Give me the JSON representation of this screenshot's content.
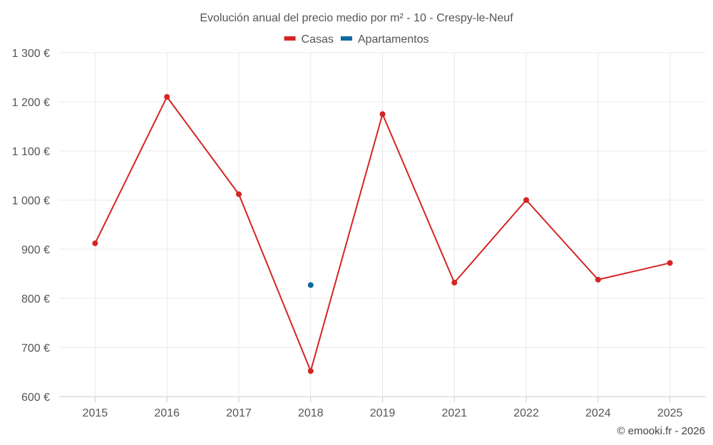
{
  "chart_data": {
    "type": "line",
    "title": "Evolución anual del precio medio por m² - 10 - Crespy-le-Neuf",
    "categories": [
      "2015",
      "2016",
      "2017",
      "2018",
      "2019",
      "2021",
      "2022",
      "2024",
      "2025"
    ],
    "series": [
      {
        "name": "Casas",
        "color": "#d42424",
        "values": [
          912,
          1210,
          1012,
          652,
          1175,
          832,
          1000,
          838,
          872
        ]
      },
      {
        "name": "Apartamentos",
        "color": "#0b6aa0",
        "values": [
          null,
          null,
          null,
          827,
          null,
          null,
          null,
          null,
          null
        ]
      }
    ],
    "ylim": [
      600,
      1300
    ],
    "yticks": [
      600,
      700,
      800,
      900,
      1000,
      1100,
      1200,
      1300
    ],
    "ytick_labels": [
      "600 €",
      "700 €",
      "800 €",
      "900 €",
      "1 000 €",
      "1 100 €",
      "1 200 €",
      "1 300 €"
    ],
    "grid": true,
    "legend_position": "top-center"
  },
  "credit": "© emooki.fr - 2026"
}
